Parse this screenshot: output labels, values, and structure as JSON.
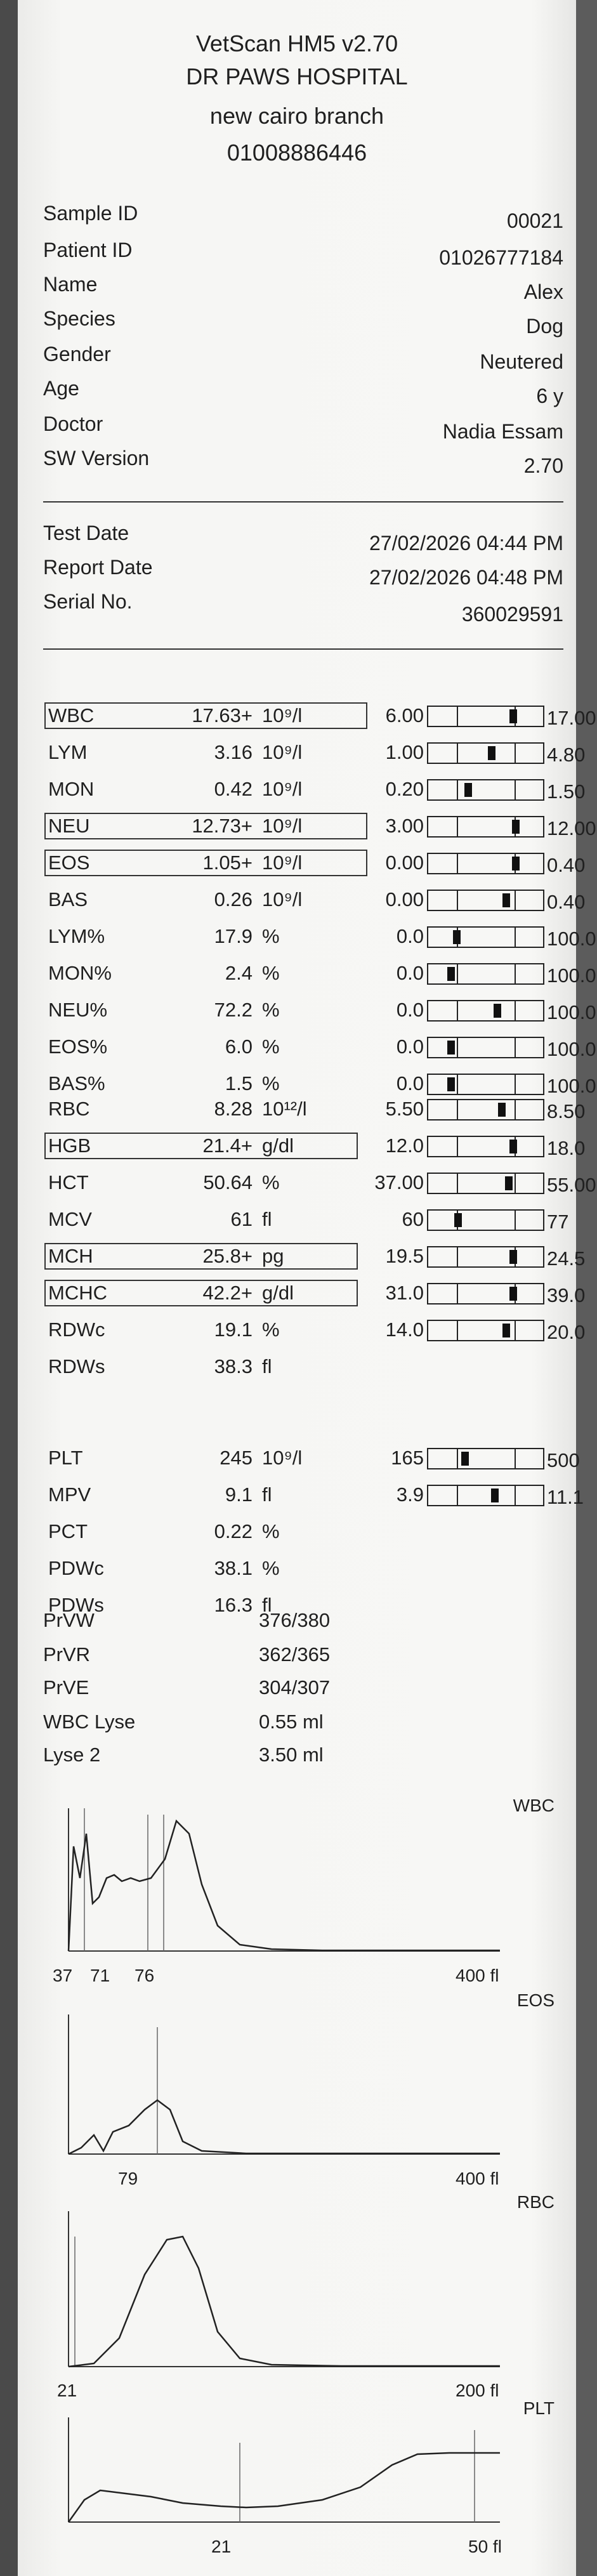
{
  "header": {
    "device": "VetScan HM5 v2.70",
    "clinic": "DR PAWS HOSPITAL",
    "branch": "new cairo branch",
    "phone": "01008886446"
  },
  "info": [
    {
      "label": "Sample ID",
      "value": "00021"
    },
    {
      "label": "Patient ID",
      "value": "01026777184"
    },
    {
      "label": "Name",
      "value": "Alex"
    },
    {
      "label": "Species",
      "value": "Dog"
    },
    {
      "label": "Gender",
      "value": "Neutered"
    },
    {
      "label": "Age",
      "value": "6 y"
    },
    {
      "label": "Doctor",
      "value": "Nadia Essam"
    },
    {
      "label": "SW Version",
      "value": "2.70"
    }
  ],
  "dates": [
    {
      "label": "Test Date",
      "value": "27/02/2026 04:44 PM"
    },
    {
      "label": "Report Date",
      "value": "27/02/2026 04:48 PM"
    },
    {
      "label": "Serial No.",
      "value": "360029591"
    }
  ],
  "wbc_params": [
    {
      "name": "WBC",
      "value": "17.63",
      "flag": "+",
      "unit": "10⁹/l",
      "low": "6.00",
      "high": "17.00",
      "boxed": true,
      "pos": 0.74
    },
    {
      "name": "LYM",
      "value": "3.16",
      "flag": "",
      "unit": "10⁹/l",
      "low": "1.00",
      "high": "4.80",
      "boxed": false,
      "pos": 0.55
    },
    {
      "name": "MON",
      "value": "0.42",
      "flag": "",
      "unit": "10⁹/l",
      "low": "0.20",
      "high": "1.50",
      "boxed": false,
      "pos": 0.35
    },
    {
      "name": "NEU",
      "value": "12.73",
      "flag": "+",
      "unit": "10⁹/l",
      "low": "3.00",
      "high": "12.00",
      "boxed": true,
      "pos": 0.76
    },
    {
      "name": "EOS",
      "value": "1.05",
      "flag": "+",
      "unit": "10⁹/l",
      "low": "0.00",
      "high": "0.40",
      "boxed": true,
      "pos": 0.76
    },
    {
      "name": "BAS",
      "value": "0.26",
      "flag": "",
      "unit": "10⁹/l",
      "low": "0.00",
      "high": "0.40",
      "boxed": false,
      "pos": 0.68
    },
    {
      "name": "LYM%",
      "value": "17.9",
      "flag": "",
      "unit": "%",
      "low": "0.0",
      "high": "100.0",
      "boxed": false,
      "pos": 0.25
    },
    {
      "name": "MON%",
      "value": "2.4",
      "flag": "",
      "unit": "%",
      "low": "0.0",
      "high": "100.0",
      "boxed": false,
      "pos": 0.2
    },
    {
      "name": "NEU%",
      "value": "72.2",
      "flag": "",
      "unit": "%",
      "low": "0.0",
      "high": "100.0",
      "boxed": false,
      "pos": 0.6
    },
    {
      "name": "EOS%",
      "value": "6.0",
      "flag": "",
      "unit": "%",
      "low": "0.0",
      "high": "100.0",
      "boxed": false,
      "pos": 0.2
    },
    {
      "name": "BAS%",
      "value": "1.5",
      "flag": "",
      "unit": "%",
      "low": "0.0",
      "high": "100.0",
      "boxed": false,
      "pos": 0.2
    }
  ],
  "rbc_params": [
    {
      "name": "RBC",
      "value": "8.28",
      "flag": "",
      "unit": "10¹²/l",
      "low": "5.50",
      "high": "8.50",
      "boxed": false,
      "pos": 0.64
    },
    {
      "name": "HGB",
      "value": "21.4",
      "flag": "+",
      "unit": "g/dl",
      "low": "12.0",
      "high": "18.0",
      "boxed": true,
      "pos": 0.74
    },
    {
      "name": "HCT",
      "value": "50.64",
      "flag": "",
      "unit": "%",
      "low": "37.00",
      "high": "55.00",
      "boxed": false,
      "pos": 0.7
    },
    {
      "name": "MCV",
      "value": "61",
      "flag": "",
      "unit": "fl",
      "low": "60",
      "high": "77",
      "boxed": false,
      "pos": 0.26
    },
    {
      "name": "MCH",
      "value": "25.8",
      "flag": "+",
      "unit": "pg",
      "low": "19.5",
      "high": "24.5",
      "boxed": true,
      "pos": 0.74
    },
    {
      "name": "MCHC",
      "value": "42.2",
      "flag": "+",
      "unit": "g/dl",
      "low": "31.0",
      "high": "39.0",
      "boxed": true,
      "pos": 0.74
    },
    {
      "name": "RDWc",
      "value": "19.1",
      "flag": "",
      "unit": "%",
      "low": "14.0",
      "high": "20.0",
      "boxed": false,
      "pos": 0.68
    },
    {
      "name": "RDWs",
      "value": "38.3",
      "flag": "",
      "unit": "fl",
      "low": "",
      "high": "",
      "boxed": false,
      "pos": null
    }
  ],
  "plt_params": [
    {
      "name": "PLT",
      "value": "245",
      "flag": "",
      "unit": "10⁹/l",
      "low": "165",
      "high": "500",
      "boxed": false,
      "pos": 0.32
    },
    {
      "name": "MPV",
      "value": "9.1",
      "flag": "",
      "unit": "fl",
      "low": "3.9",
      "high": "11.1",
      "boxed": false,
      "pos": 0.58
    },
    {
      "name": "PCT",
      "value": "0.22",
      "flag": "",
      "unit": "%",
      "low": "",
      "high": "",
      "boxed": false,
      "pos": null
    },
    {
      "name": "PDWc",
      "value": "38.1",
      "flag": "",
      "unit": "%",
      "low": "",
      "high": "",
      "boxed": false,
      "pos": null
    },
    {
      "name": "PDWs",
      "value": "16.3",
      "flag": "",
      "unit": "fl",
      "low": "",
      "high": "",
      "boxed": false,
      "pos": null
    }
  ],
  "qc": [
    {
      "label": "PrVW",
      "value": "376/380"
    },
    {
      "label": "PrVR",
      "value": "362/365"
    },
    {
      "label": "PrVE",
      "value": "304/307"
    },
    {
      "label": "WBC Lyse",
      "value": "0.55 ml"
    },
    {
      "label": "Lyse 2",
      "value": "3.50 ml"
    }
  ],
  "histograms": {
    "wbc": {
      "title": "WBC",
      "ticks": [
        "37",
        "71",
        "76"
      ],
      "end": "400 fl"
    },
    "eos": {
      "title": "EOS",
      "ticks": [
        "79"
      ],
      "end": "400 fl"
    },
    "rbc": {
      "title": "RBC",
      "ticks": [
        "21"
      ],
      "end": "200 fl"
    },
    "plt": {
      "title": "PLT",
      "ticks": [
        "21"
      ],
      "end": "50 fl"
    }
  }
}
